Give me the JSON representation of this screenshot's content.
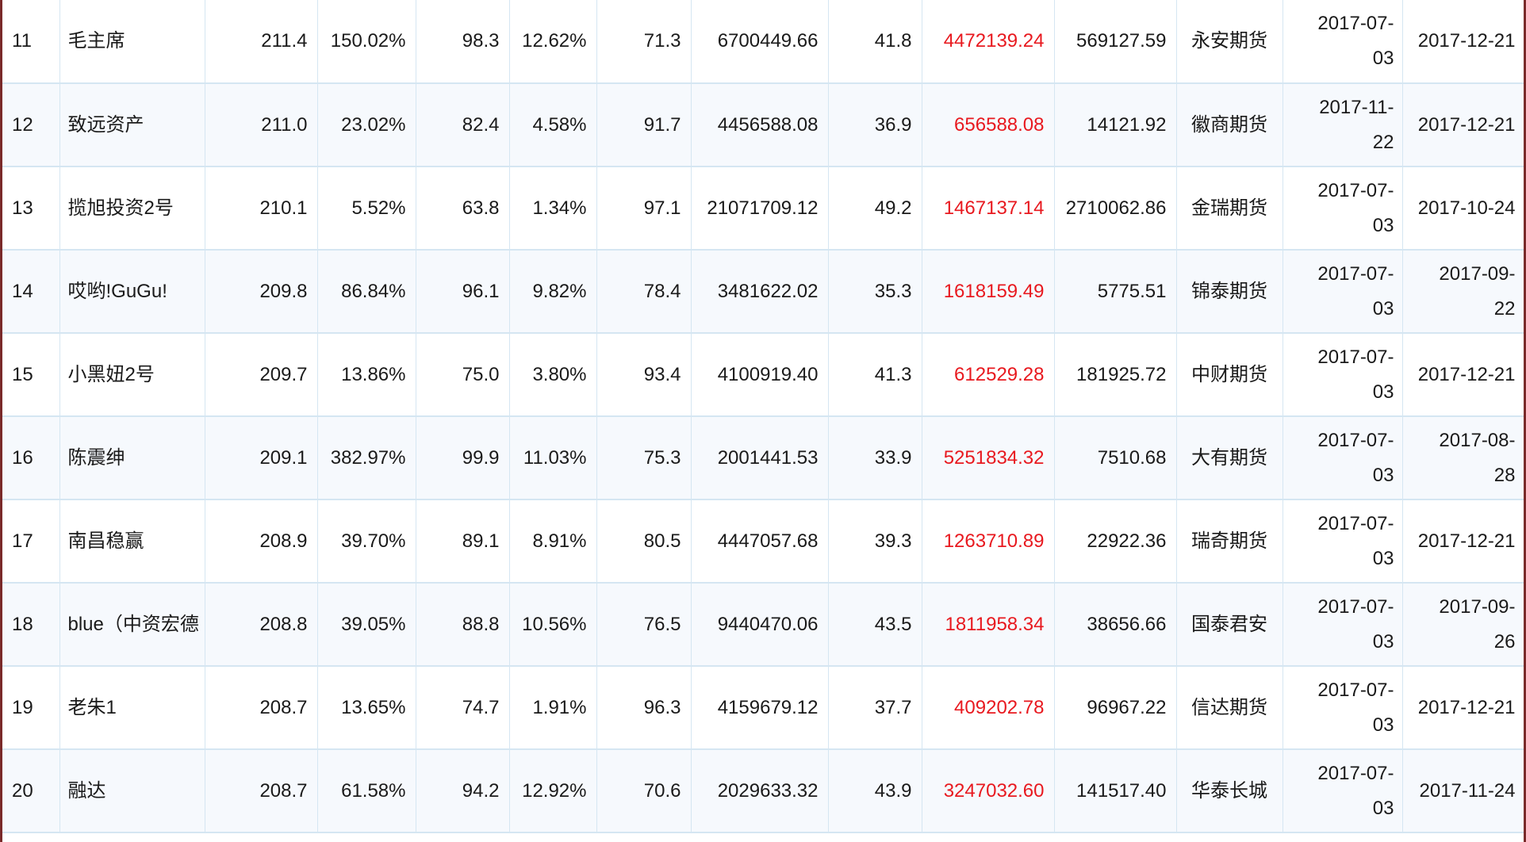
{
  "rows": [
    {
      "rank": "11",
      "name": "毛主席",
      "score": "211.4",
      "net_value_growth": "150.02%",
      "v1": "98.3",
      "max_drawdown": "12.62%",
      "v2": "71.3",
      "equity": "6700449.66",
      "v3": "41.8",
      "profit": "4472139.24",
      "deposit": "569127.59",
      "company": "永安期货",
      "start_date_a": "2017-07-",
      "start_date_b": "03",
      "end_date_a": "2017-12-21",
      "end_date_b": ""
    },
    {
      "rank": "12",
      "name": "致远资产",
      "score": "211.0",
      "net_value_growth": "23.02%",
      "v1": "82.4",
      "max_drawdown": "4.58%",
      "v2": "91.7",
      "equity": "4456588.08",
      "v3": "36.9",
      "profit": "656588.08",
      "deposit": "14121.92",
      "company": "徽商期货",
      "start_date_a": "2017-11-",
      "start_date_b": "22",
      "end_date_a": "2017-12-21",
      "end_date_b": ""
    },
    {
      "rank": "13",
      "name": "揽旭投资2号",
      "score": "210.1",
      "net_value_growth": "5.52%",
      "v1": "63.8",
      "max_drawdown": "1.34%",
      "v2": "97.1",
      "equity": "21071709.12",
      "v3": "49.2",
      "profit": "1467137.14",
      "deposit": "2710062.86",
      "company": "金瑞期货",
      "start_date_a": "2017-07-",
      "start_date_b": "03",
      "end_date_a": "2017-10-24",
      "end_date_b": ""
    },
    {
      "rank": "14",
      "name": "哎哟!GuGu!",
      "score": "209.8",
      "net_value_growth": "86.84%",
      "v1": "96.1",
      "max_drawdown": "9.82%",
      "v2": "78.4",
      "equity": "3481622.02",
      "v3": "35.3",
      "profit": "1618159.49",
      "deposit": "5775.51",
      "company": "锦泰期货",
      "start_date_a": "2017-07-",
      "start_date_b": "03",
      "end_date_a": "2017-09-",
      "end_date_b": "22"
    },
    {
      "rank": "15",
      "name": "小黑妞2号",
      "score": "209.7",
      "net_value_growth": "13.86%",
      "v1": "75.0",
      "max_drawdown": "3.80%",
      "v2": "93.4",
      "equity": "4100919.40",
      "v3": "41.3",
      "profit": "612529.28",
      "deposit": "181925.72",
      "company": "中财期货",
      "start_date_a": "2017-07-",
      "start_date_b": "03",
      "end_date_a": "2017-12-21",
      "end_date_b": ""
    },
    {
      "rank": "16",
      "name": "陈震绅",
      "score": "209.1",
      "net_value_growth": "382.97%",
      "v1": "99.9",
      "max_drawdown": "11.03%",
      "v2": "75.3",
      "equity": "2001441.53",
      "v3": "33.9",
      "profit": "5251834.32",
      "deposit": "7510.68",
      "company": "大有期货",
      "start_date_a": "2017-07-",
      "start_date_b": "03",
      "end_date_a": "2017-08-",
      "end_date_b": "28"
    },
    {
      "rank": "17",
      "name": "南昌稳赢",
      "score": "208.9",
      "net_value_growth": "39.70%",
      "v1": "89.1",
      "max_drawdown": "8.91%",
      "v2": "80.5",
      "equity": "4447057.68",
      "v3": "39.3",
      "profit": "1263710.89",
      "deposit": "22922.36",
      "company": "瑞奇期货",
      "start_date_a": "2017-07-",
      "start_date_b": "03",
      "end_date_a": "2017-12-21",
      "end_date_b": ""
    },
    {
      "rank": "18",
      "name": "blue（中资宏德",
      "score": "208.8",
      "net_value_growth": "39.05%",
      "v1": "88.8",
      "max_drawdown": "10.56%",
      "v2": "76.5",
      "equity": "9440470.06",
      "v3": "43.5",
      "profit": "1811958.34",
      "deposit": "38656.66",
      "company": "国泰君安",
      "start_date_a": "2017-07-",
      "start_date_b": "03",
      "end_date_a": "2017-09-",
      "end_date_b": "26"
    },
    {
      "rank": "19",
      "name": "老朱1",
      "score": "208.7",
      "net_value_growth": "13.65%",
      "v1": "74.7",
      "max_drawdown": "1.91%",
      "v2": "96.3",
      "equity": "4159679.12",
      "v3": "37.7",
      "profit": "409202.78",
      "deposit": "96967.22",
      "company": "信达期货",
      "start_date_a": "2017-07-",
      "start_date_b": "03",
      "end_date_a": "2017-12-21",
      "end_date_b": ""
    },
    {
      "rank": "20",
      "name": "融达",
      "score": "208.7",
      "net_value_growth": "61.58%",
      "v1": "94.2",
      "max_drawdown": "12.92%",
      "v2": "70.6",
      "equity": "2029633.32",
      "v3": "43.9",
      "profit": "3247032.60",
      "deposit": "141517.40",
      "company": "华泰长城",
      "start_date_a": "2017-07-",
      "start_date_b": "03",
      "end_date_a": "2017-11-24",
      "end_date_b": ""
    }
  ],
  "colors": {
    "profit_text": "#e8191f",
    "grid_line": "#d5e6f2",
    "row_alt_bg": "#f6f9fd",
    "frame_border": "#7a2a2a"
  }
}
